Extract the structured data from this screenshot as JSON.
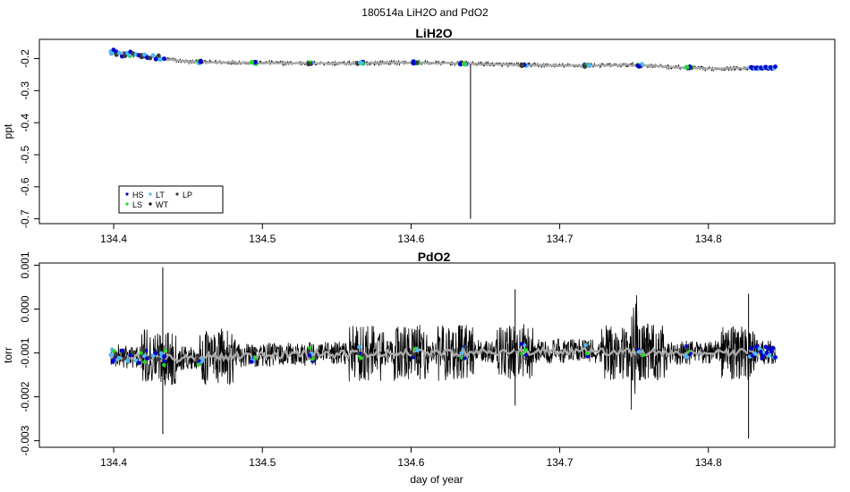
{
  "figure": {
    "suptitle": "180514a   LiH2O and PdO2"
  },
  "chart_data": [
    {
      "type": "line",
      "title": "LiH2O",
      "ylabel": "ppt",
      "xlabel": "",
      "xlim": [
        134.35,
        134.885
      ],
      "ylim": [
        -0.715,
        -0.14
      ],
      "x_ticks": [
        134.4,
        134.5,
        134.6,
        134.7,
        134.8
      ],
      "y_ticks": [
        -0.7,
        -0.6,
        -0.5,
        -0.4,
        -0.3,
        -0.2
      ],
      "baseline": {
        "x": [
          134.398,
          134.45,
          134.5,
          134.55,
          134.6,
          134.65,
          134.7,
          134.75,
          134.8,
          134.845
        ],
        "y": [
          -0.18,
          -0.21,
          -0.213,
          -0.215,
          -0.212,
          -0.217,
          -0.222,
          -0.22,
          -0.232,
          -0.228
        ]
      },
      "spike": {
        "x": 134.64,
        "y_min": -0.7,
        "y_max": -0.22
      },
      "legend": {
        "location": "bottom-left",
        "entries": [
          {
            "label": "HS",
            "color": "#0000cd"
          },
          {
            "label": "LT",
            "color": "#4fb8ff"
          },
          {
            "label": "LP",
            "color": "#3a3a3a"
          },
          {
            "label": "LS",
            "color": "#22dd22"
          },
          {
            "label": "WT",
            "color": "#000000"
          }
        ]
      }
    },
    {
      "type": "line",
      "title": "PdO2",
      "ylabel": "torr",
      "xlabel": "day of year",
      "xlim": [
        134.35,
        134.885
      ],
      "ylim": [
        -0.00315,
        0.00105
      ],
      "x_ticks": [
        134.4,
        134.5,
        134.6,
        134.7,
        134.8
      ],
      "y_ticks": [
        -0.003,
        -0.002,
        -0.001,
        0.0,
        0.001
      ],
      "baseline": {
        "x": [
          134.398,
          134.45,
          134.5,
          134.55,
          134.6,
          134.65,
          134.7,
          134.75,
          134.8,
          134.845
        ],
        "y": [
          -0.00108,
          -0.00112,
          -0.00105,
          -0.00102,
          -0.001,
          -0.00098,
          -0.00095,
          -0.00098,
          -0.001,
          -0.00098
        ]
      },
      "spikes": [
        {
          "x": 134.433,
          "y_min": -0.00285,
          "y_max": 0.00095
        },
        {
          "x": 134.67,
          "y_min": -0.0022,
          "y_max": 0.00045
        },
        {
          "x": 134.827,
          "y_min": -0.00295,
          "y_max": 0.00035
        }
      ]
    }
  ]
}
